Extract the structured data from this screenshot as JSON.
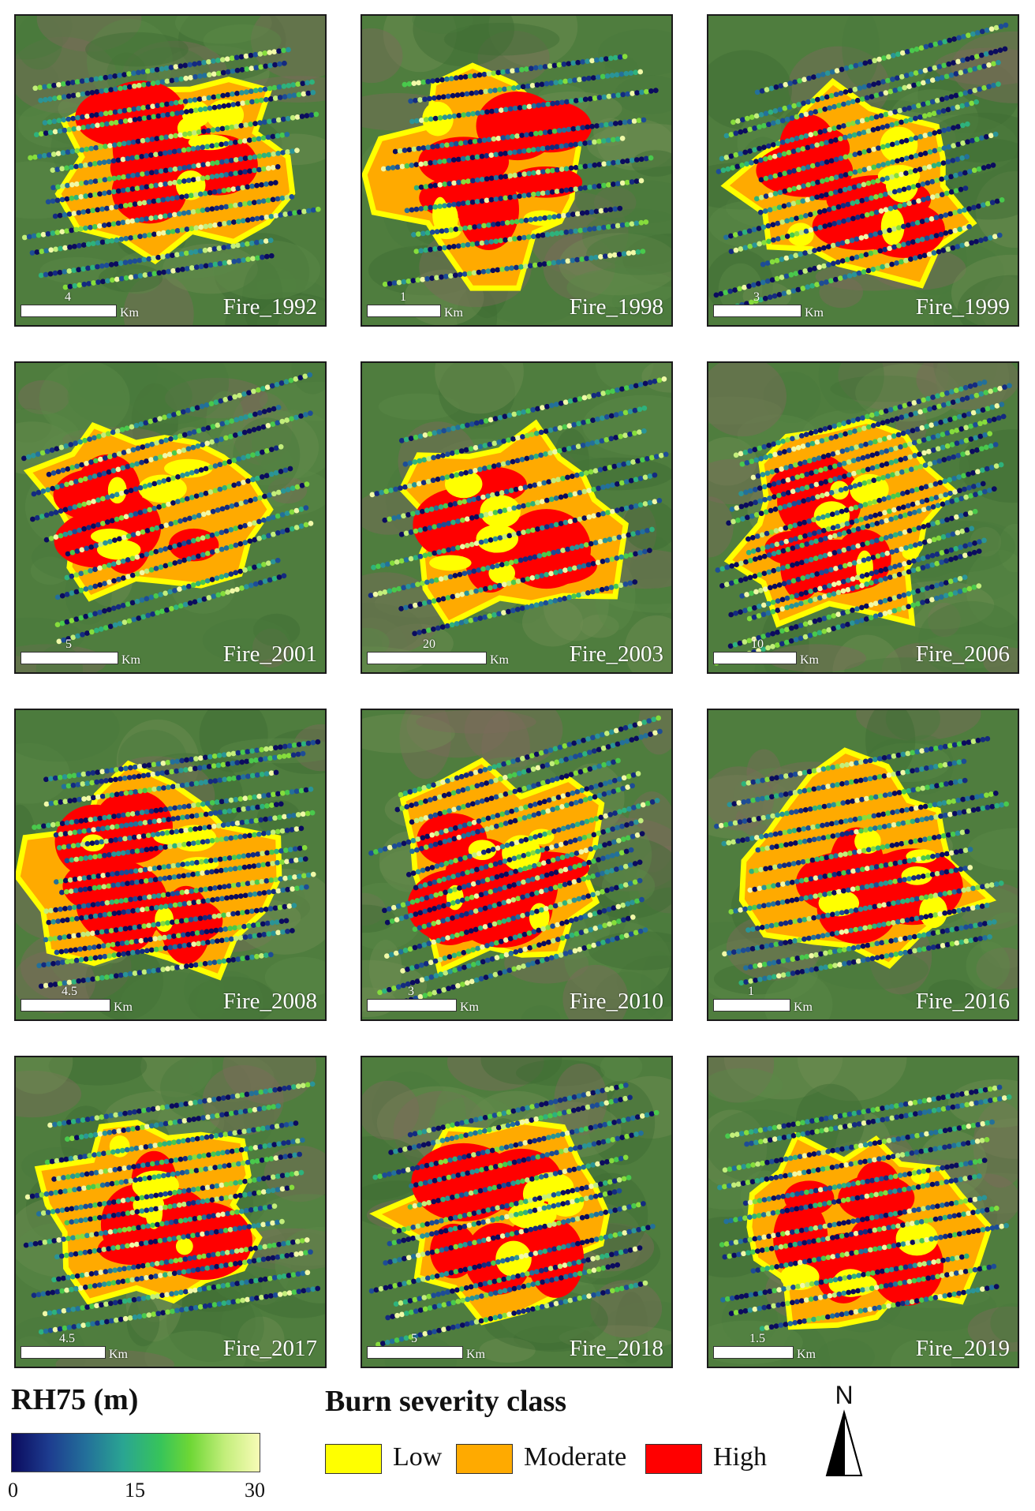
{
  "panels": [
    {
      "name": "Fire_1992",
      "scale_value": "4",
      "scale_unit": "Km"
    },
    {
      "name": "Fire_1998",
      "scale_value": "1",
      "scale_unit": "Km"
    },
    {
      "name": "Fire_1999",
      "scale_value": "3",
      "scale_unit": "Km"
    },
    {
      "name": "Fire_2001",
      "scale_value": "5",
      "scale_unit": "Km"
    },
    {
      "name": "Fire_2003",
      "scale_value": "20",
      "scale_unit": "Km"
    },
    {
      "name": "Fire_2006",
      "scale_value": "10",
      "scale_unit": "Km"
    },
    {
      "name": "Fire_2008",
      "scale_value": "4.5",
      "scale_unit": "Km"
    },
    {
      "name": "Fire_2010",
      "scale_value": "3",
      "scale_unit": "Km"
    },
    {
      "name": "Fire_2016",
      "scale_value": "1",
      "scale_unit": "Km"
    },
    {
      "name": "Fire_2017",
      "scale_value": "4.5",
      "scale_unit": "Km"
    },
    {
      "name": "Fire_2018",
      "scale_value": "5",
      "scale_unit": "Km"
    },
    {
      "name": "Fire_2019",
      "scale_value": "1.5",
      "scale_unit": "Km"
    }
  ],
  "legend": {
    "rh_title": "RH75 (m)",
    "rh_ticks": [
      "0",
      "15",
      "30"
    ],
    "rh_range": [
      0,
      30
    ],
    "burn_title": "Burn severity class",
    "burn_classes": [
      {
        "label": "Low",
        "color": "#ffff00"
      },
      {
        "label": "Moderate",
        "color": "#ffaa00"
      },
      {
        "label": "High",
        "color": "#ff0000"
      }
    ],
    "north_label": "N"
  },
  "colors": {
    "vegetation": "#4f7d3e",
    "rh_low": "#0b0b5e",
    "rh_mid": "#2aa592",
    "rh_high": "#f7fbb6"
  }
}
